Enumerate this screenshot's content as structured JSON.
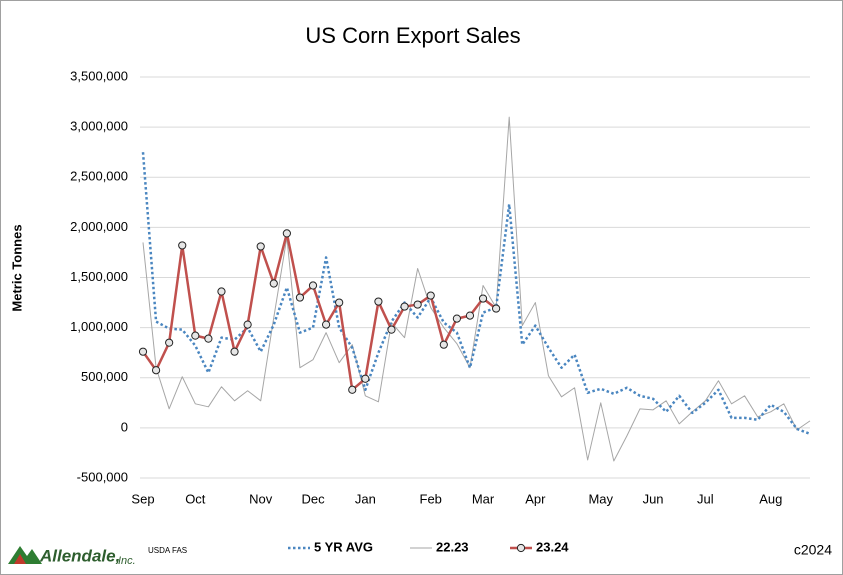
{
  "chart_data": {
    "type": "line",
    "title": "US Corn Export Sales",
    "y_label": "Metric Tonnes",
    "categories": [
      "Sep",
      null,
      null,
      null,
      "Oct",
      null,
      null,
      null,
      null,
      "Nov",
      null,
      null,
      null,
      "Dec",
      null,
      null,
      null,
      "Jan",
      null,
      null,
      null,
      null,
      "Feb",
      null,
      null,
      null,
      "Mar",
      null,
      null,
      null,
      "Apr",
      null,
      null,
      null,
      null,
      "May",
      null,
      null,
      null,
      "Jun",
      null,
      null,
      null,
      "Jul",
      null,
      null,
      null,
      null,
      "Aug",
      null,
      null,
      null
    ],
    "series": [
      {
        "name": "5 YR AVG",
        "color": "#4a86c0",
        "line_style": "dotted",
        "markers": false,
        "values": [
          2750000,
          1060000,
          990000,
          980000,
          820000,
          550000,
          900000,
          880000,
          1000000,
          760000,
          1030000,
          1400000,
          950000,
          1000000,
          1700000,
          1000000,
          800000,
          380000,
          750000,
          1060000,
          1250000,
          1100000,
          1300000,
          1050000,
          950000,
          600000,
          1150000,
          1200000,
          2230000,
          830000,
          1020000,
          800000,
          600000,
          730000,
          350000,
          390000,
          340000,
          400000,
          320000,
          290000,
          160000,
          320000,
          150000,
          250000,
          380000,
          100000,
          100000,
          80000,
          230000,
          160000,
          -10000,
          -60000
        ]
      },
      {
        "name": "22.23",
        "color": "#a6a6a6",
        "line_style": "solid",
        "markers": false,
        "values": [
          1850000,
          600000,
          190000,
          510000,
          240000,
          210000,
          410000,
          270000,
          370000,
          270000,
          1100000,
          1900000,
          600000,
          680000,
          950000,
          650000,
          830000,
          320000,
          260000,
          1050000,
          900000,
          1590000,
          1200000,
          1000000,
          840000,
          600000,
          1420000,
          1200000,
          3100000,
          1020000,
          1250000,
          520000,
          310000,
          400000,
          -320000,
          250000,
          -330000,
          -80000,
          190000,
          180000,
          270000,
          40000,
          160000,
          270000,
          470000,
          240000,
          320000,
          110000,
          160000,
          240000,
          -20000,
          70000
        ]
      },
      {
        "name": "23.24",
        "color": "#c0504d",
        "line_style": "solid",
        "markers": true,
        "values": [
          760000,
          575000,
          850000,
          1820000,
          920000,
          890000,
          1360000,
          760000,
          1030000,
          1810000,
          1440000,
          1940000,
          1300000,
          1420000,
          1030000,
          1250000,
          380000,
          490000,
          1260000,
          980000,
          1210000,
          1230000,
          1320000,
          830000,
          1090000,
          1120000,
          1290000,
          1190000,
          null,
          null,
          null,
          null,
          null,
          null,
          null,
          null,
          null,
          null,
          null,
          null,
          null,
          null,
          null,
          null,
          null,
          null,
          null,
          null,
          null,
          null,
          null,
          null
        ]
      }
    ],
    "ylim": [
      -500000,
      3500000
    ],
    "yticks": [
      {
        "value": -500000,
        "label": "-500,000"
      },
      0,
      {
        "value": 500000,
        "label": "500,000"
      },
      {
        "value": 1000000,
        "label": "1,000,000"
      },
      {
        "value": 1500000,
        "label": "1,500,000"
      },
      {
        "value": 2000000,
        "label": "2,000,000"
      },
      {
        "value": 2500000,
        "label": "2,500,000"
      },
      {
        "value": 3000000,
        "label": "3,000,000"
      },
      {
        "value": 3500000,
        "label": "3,500,000"
      }
    ],
    "grid": true,
    "legend": "bottom",
    "logo": {
      "name": "Allendale,",
      "suffix": "Inc."
    },
    "source": "USDA FAS",
    "copyright": "c2024"
  }
}
